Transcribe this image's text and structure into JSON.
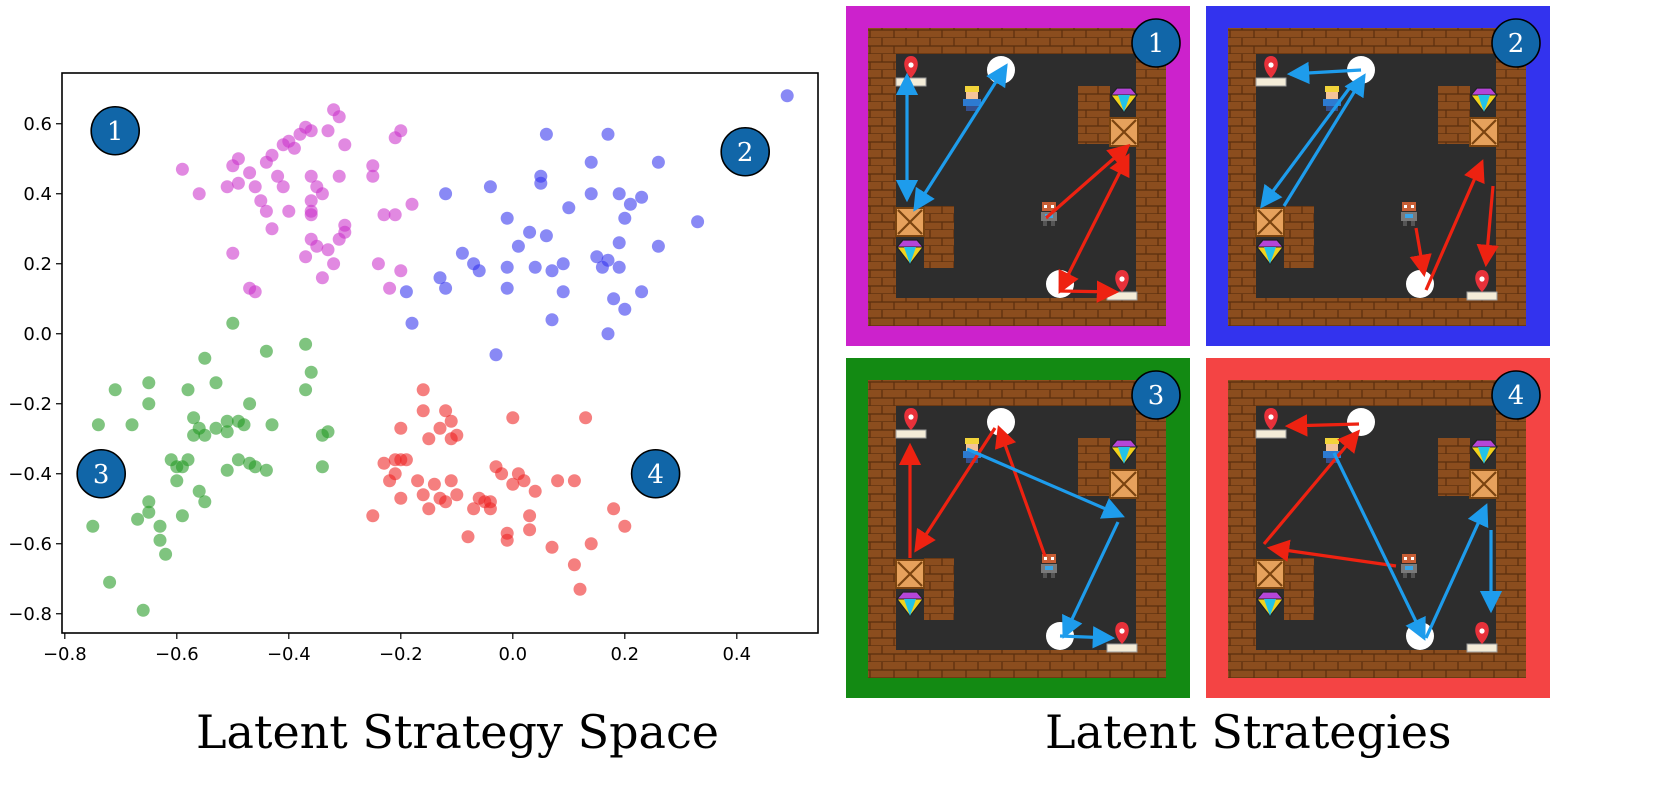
{
  "chart_data": {
    "type": "scatter",
    "title": "Latent Strategy Space",
    "xlabel": "",
    "ylabel": "",
    "xlim": [
      -0.805,
      0.545
    ],
    "ylim": [
      -0.855,
      0.745
    ],
    "xticks": [
      -0.8,
      -0.6,
      -0.4,
      -0.2,
      0.0,
      0.2,
      0.4
    ],
    "yticks": [
      -0.8,
      -0.6,
      -0.4,
      -0.2,
      0.0,
      0.2,
      0.4,
      0.6
    ],
    "grid": false,
    "annotations": [
      {
        "label": "1",
        "x": -0.71,
        "y": 0.58
      },
      {
        "label": "2",
        "x": 0.415,
        "y": 0.52
      },
      {
        "label": "3",
        "x": -0.735,
        "y": -0.4
      },
      {
        "label": "4",
        "x": 0.255,
        "y": -0.4
      }
    ],
    "series": [
      {
        "color": "#cc33cc",
        "points": [
          [
            -0.32,
            0.64
          ],
          [
            -0.31,
            0.62
          ],
          [
            -0.37,
            0.59
          ],
          [
            -0.36,
            0.58
          ],
          [
            -0.33,
            0.58
          ],
          [
            -0.2,
            0.58
          ],
          [
            -0.21,
            0.56
          ],
          [
            -0.38,
            0.57
          ],
          [
            -0.4,
            0.55
          ],
          [
            -0.39,
            0.53
          ],
          [
            -0.41,
            0.54
          ],
          [
            -0.43,
            0.51
          ],
          [
            -0.44,
            0.49
          ],
          [
            -0.3,
            0.54
          ],
          [
            -0.49,
            0.5
          ],
          [
            -0.5,
            0.48
          ],
          [
            -0.47,
            0.46
          ],
          [
            -0.42,
            0.45
          ],
          [
            -0.36,
            0.45
          ],
          [
            -0.31,
            0.45
          ],
          [
            -0.25,
            0.48
          ],
          [
            -0.25,
            0.45
          ],
          [
            -0.59,
            0.47
          ],
          [
            -0.49,
            0.43
          ],
          [
            -0.51,
            0.42
          ],
          [
            -0.46,
            0.42
          ],
          [
            -0.41,
            0.42
          ],
          [
            -0.35,
            0.42
          ],
          [
            -0.56,
            0.4
          ],
          [
            -0.36,
            0.38
          ],
          [
            -0.34,
            0.4
          ],
          [
            -0.45,
            0.38
          ],
          [
            -0.44,
            0.35
          ],
          [
            -0.4,
            0.35
          ],
          [
            -0.36,
            0.34
          ],
          [
            -0.36,
            0.35
          ],
          [
            -0.18,
            0.37
          ],
          [
            -0.3,
            0.31
          ],
          [
            -0.3,
            0.29
          ],
          [
            -0.23,
            0.34
          ],
          [
            -0.21,
            0.34
          ],
          [
            -0.43,
            0.3
          ],
          [
            -0.36,
            0.27
          ],
          [
            -0.31,
            0.27
          ],
          [
            -0.33,
            0.24
          ],
          [
            -0.35,
            0.25
          ],
          [
            -0.37,
            0.22
          ],
          [
            -0.5,
            0.23
          ],
          [
            -0.24,
            0.2
          ],
          [
            -0.2,
            0.18
          ],
          [
            -0.32,
            0.2
          ],
          [
            -0.34,
            0.16
          ],
          [
            -0.22,
            0.13
          ],
          [
            -0.47,
            0.13
          ],
          [
            -0.46,
            0.12
          ]
        ]
      },
      {
        "color": "#3333ee",
        "points": [
          [
            0.49,
            0.68
          ],
          [
            0.06,
            0.57
          ],
          [
            0.17,
            0.57
          ],
          [
            0.26,
            0.49
          ],
          [
            0.14,
            0.49
          ],
          [
            0.05,
            0.45
          ],
          [
            0.05,
            0.43
          ],
          [
            0.14,
            0.4
          ],
          [
            0.19,
            0.4
          ],
          [
            0.23,
            0.39
          ],
          [
            0.21,
            0.37
          ],
          [
            -0.12,
            0.4
          ],
          [
            -0.04,
            0.42
          ],
          [
            0.33,
            0.32
          ],
          [
            0.1,
            0.36
          ],
          [
            0.2,
            0.33
          ],
          [
            -0.01,
            0.33
          ],
          [
            0.03,
            0.29
          ],
          [
            0.06,
            0.28
          ],
          [
            0.19,
            0.26
          ],
          [
            0.26,
            0.25
          ],
          [
            0.01,
            0.25
          ],
          [
            0.15,
            0.22
          ],
          [
            0.17,
            0.21
          ],
          [
            -0.09,
            0.23
          ],
          [
            -0.07,
            0.2
          ],
          [
            -0.06,
            0.18
          ],
          [
            -0.01,
            0.19
          ],
          [
            0.04,
            0.19
          ],
          [
            0.07,
            0.18
          ],
          [
            0.09,
            0.2
          ],
          [
            0.16,
            0.19
          ],
          [
            0.19,
            0.19
          ],
          [
            -0.13,
            0.16
          ],
          [
            -0.12,
            0.13
          ],
          [
            -0.19,
            0.12
          ],
          [
            -0.01,
            0.13
          ],
          [
            0.09,
            0.12
          ],
          [
            0.18,
            0.1
          ],
          [
            0.2,
            0.07
          ],
          [
            0.23,
            0.12
          ],
          [
            -0.18,
            0.03
          ],
          [
            0.07,
            0.04
          ],
          [
            0.17,
            0.0
          ],
          [
            -0.03,
            -0.06
          ]
        ]
      },
      {
        "color": "#229922",
        "points": [
          [
            -0.5,
            0.03
          ],
          [
            -0.37,
            -0.03
          ],
          [
            -0.44,
            -0.05
          ],
          [
            -0.55,
            -0.07
          ],
          [
            -0.36,
            -0.11
          ],
          [
            -0.53,
            -0.14
          ],
          [
            -0.65,
            -0.14
          ],
          [
            -0.71,
            -0.16
          ],
          [
            -0.58,
            -0.16
          ],
          [
            -0.37,
            -0.16
          ],
          [
            -0.65,
            -0.2
          ],
          [
            -0.47,
            -0.2
          ],
          [
            -0.57,
            -0.24
          ],
          [
            -0.51,
            -0.25
          ],
          [
            -0.49,
            -0.25
          ],
          [
            -0.48,
            -0.26
          ],
          [
            -0.43,
            -0.26
          ],
          [
            -0.74,
            -0.26
          ],
          [
            -0.68,
            -0.26
          ],
          [
            -0.56,
            -0.27
          ],
          [
            -0.53,
            -0.27
          ],
          [
            -0.51,
            -0.28
          ],
          [
            -0.55,
            -0.29
          ],
          [
            -0.57,
            -0.29
          ],
          [
            -0.33,
            -0.28
          ],
          [
            -0.34,
            -0.29
          ],
          [
            -0.61,
            -0.36
          ],
          [
            -0.49,
            -0.36
          ],
          [
            -0.58,
            -0.36
          ],
          [
            -0.47,
            -0.37
          ],
          [
            -0.6,
            -0.38
          ],
          [
            -0.59,
            -0.38
          ],
          [
            -0.51,
            -0.39
          ],
          [
            -0.46,
            -0.38
          ],
          [
            -0.44,
            -0.39
          ],
          [
            -0.34,
            -0.38
          ],
          [
            -0.6,
            -0.42
          ],
          [
            -0.56,
            -0.45
          ],
          [
            -0.65,
            -0.48
          ],
          [
            -0.55,
            -0.48
          ],
          [
            -0.65,
            -0.51
          ],
          [
            -0.59,
            -0.52
          ],
          [
            -0.67,
            -0.53
          ],
          [
            -0.75,
            -0.55
          ],
          [
            -0.63,
            -0.55
          ],
          [
            -0.63,
            -0.59
          ],
          [
            -0.62,
            -0.63
          ],
          [
            -0.72,
            -0.71
          ],
          [
            -0.66,
            -0.79
          ]
        ]
      },
      {
        "color": "#ee2222",
        "points": [
          [
            -0.16,
            -0.16
          ],
          [
            0.13,
            -0.24
          ],
          [
            0.0,
            -0.24
          ],
          [
            -0.16,
            -0.22
          ],
          [
            -0.12,
            -0.22
          ],
          [
            -0.11,
            -0.25
          ],
          [
            -0.2,
            -0.27
          ],
          [
            -0.13,
            -0.27
          ],
          [
            -0.1,
            -0.29
          ],
          [
            -0.15,
            -0.3
          ],
          [
            -0.11,
            -0.3
          ],
          [
            -0.23,
            -0.37
          ],
          [
            -0.21,
            -0.36
          ],
          [
            -0.2,
            -0.36
          ],
          [
            -0.19,
            -0.36
          ],
          [
            -0.03,
            -0.38
          ],
          [
            -0.21,
            -0.4
          ],
          [
            -0.22,
            -0.42
          ],
          [
            -0.17,
            -0.42
          ],
          [
            -0.02,
            -0.4
          ],
          [
            0.01,
            -0.4
          ],
          [
            -0.14,
            -0.43
          ],
          [
            -0.11,
            -0.42
          ],
          [
            0.0,
            -0.43
          ],
          [
            0.02,
            -0.42
          ],
          [
            0.04,
            -0.45
          ],
          [
            0.08,
            -0.42
          ],
          [
            0.11,
            -0.42
          ],
          [
            -0.1,
            -0.46
          ],
          [
            -0.16,
            -0.46
          ],
          [
            -0.13,
            -0.47
          ],
          [
            -0.2,
            -0.47
          ],
          [
            -0.06,
            -0.47
          ],
          [
            -0.05,
            -0.48
          ],
          [
            -0.04,
            -0.48
          ],
          [
            -0.07,
            -0.5
          ],
          [
            -0.04,
            -0.5
          ],
          [
            -0.15,
            -0.5
          ],
          [
            -0.12,
            -0.48
          ],
          [
            -0.25,
            -0.52
          ],
          [
            0.03,
            -0.52
          ],
          [
            0.18,
            -0.5
          ],
          [
            0.2,
            -0.55
          ],
          [
            -0.08,
            -0.58
          ],
          [
            -0.01,
            -0.57
          ],
          [
            0.03,
            -0.56
          ],
          [
            -0.01,
            -0.59
          ],
          [
            0.07,
            -0.61
          ],
          [
            0.14,
            -0.6
          ],
          [
            0.11,
            -0.66
          ],
          [
            0.12,
            -0.73
          ]
        ]
      }
    ]
  },
  "captions": {
    "left": "Latent Strategy Space",
    "right": "Latent Strategies"
  },
  "panels": [
    {
      "label": "1",
      "border_color": "#cc22cc"
    },
    {
      "label": "2",
      "border_color": "#3333ee"
    },
    {
      "label": "3",
      "border_color": "#138a13"
    },
    {
      "label": "4",
      "border_color": "#f44444"
    }
  ],
  "arrow_colors": {
    "blue": "#1e9cec",
    "red": "#ee2211"
  }
}
